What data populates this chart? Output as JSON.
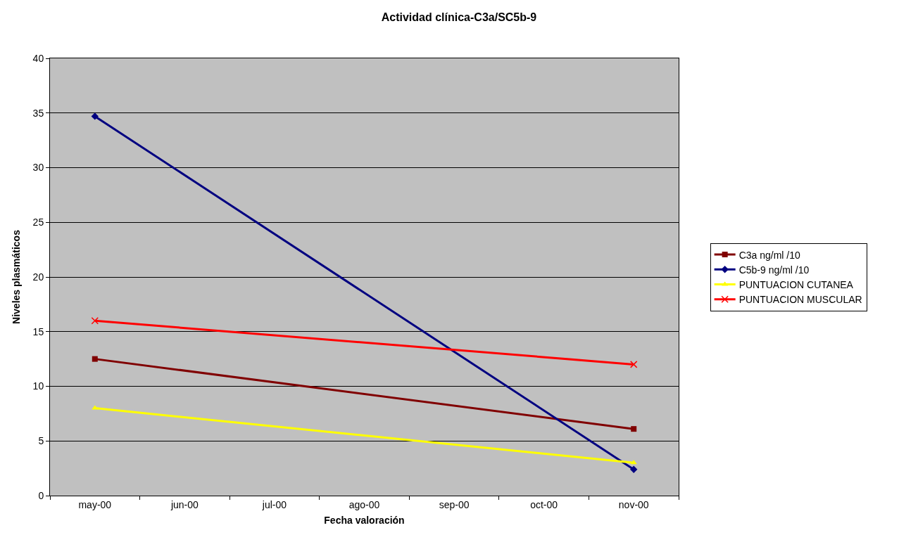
{
  "chart_data": {
    "type": "line",
    "title": "Actividad clínica-C3a/SC5b-9",
    "xlabel": "Fecha valoración",
    "ylabel": "Niveles plasmáticos",
    "categories": [
      "may-00",
      "jun-00",
      "jul-00",
      "ago-00",
      "sep-00",
      "oct-00",
      "nov-00"
    ],
    "series": [
      {
        "name": "C3a ng/ml /10",
        "color": "#800000",
        "marker": "square",
        "x": [
          "may-00",
          "nov-00"
        ],
        "values": [
          12.5,
          6.1
        ]
      },
      {
        "name": "C5b-9 ng/ml /10",
        "color": "#000080",
        "marker": "diamond",
        "x": [
          "may-00",
          "nov-00"
        ],
        "values": [
          34.7,
          2.4
        ]
      },
      {
        "name": "PUNTUACION CUTANEA",
        "color": "#ffff00",
        "marker": "triangle",
        "x": [
          "may-00",
          "nov-00"
        ],
        "values": [
          8,
          3
        ]
      },
      {
        "name": "PUNTUACION MUSCULAR",
        "color": "#ff0000",
        "marker": "cross",
        "x": [
          "may-00",
          "nov-00"
        ],
        "values": [
          16,
          12
        ]
      }
    ],
    "ylim": [
      0,
      40
    ],
    "yticks": [
      0,
      5,
      10,
      15,
      20,
      25,
      30,
      35,
      40
    ],
    "grid": "y",
    "legend": "right",
    "line_style": "solid"
  }
}
